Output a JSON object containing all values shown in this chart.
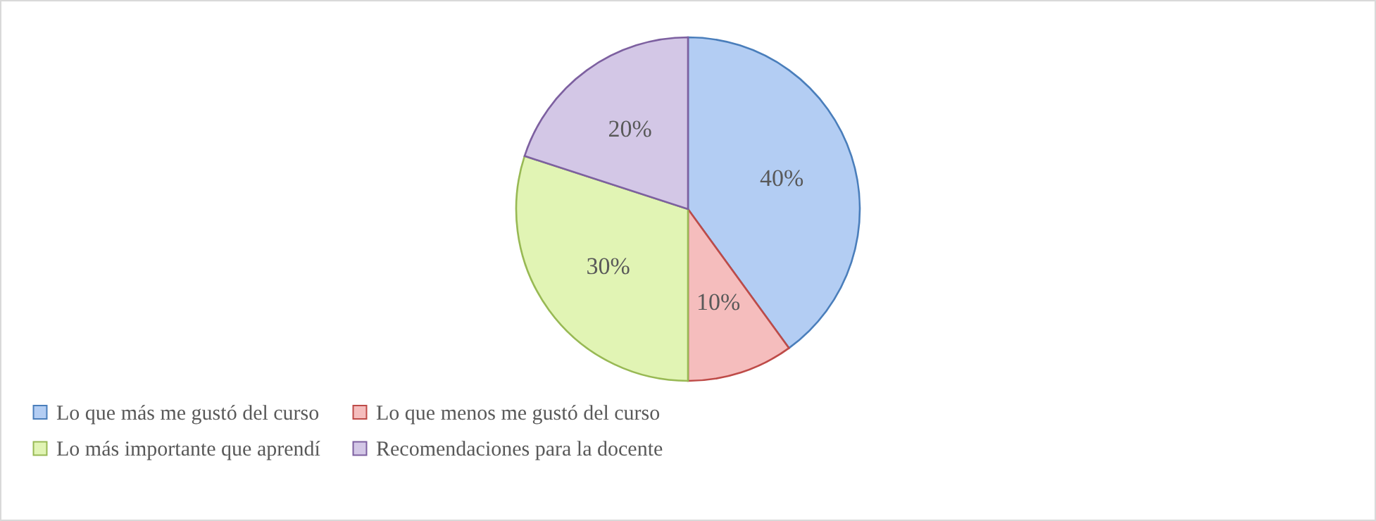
{
  "chart_data": {
    "type": "pie",
    "categories": [
      "Lo que más me gustó del curso",
      "Lo que menos me gustó del curso",
      "Lo más importante que aprendí",
      "Recomendaciones para la docente"
    ],
    "values": [
      40,
      10,
      30,
      20
    ],
    "colors": [
      "#b3cdf3",
      "#f5bdbd",
      "#e1f4b4",
      "#d3c7e6"
    ],
    "value_labels": [
      "40%",
      "10%",
      "30%",
      "20%"
    ],
    "legend": "bottom"
  }
}
